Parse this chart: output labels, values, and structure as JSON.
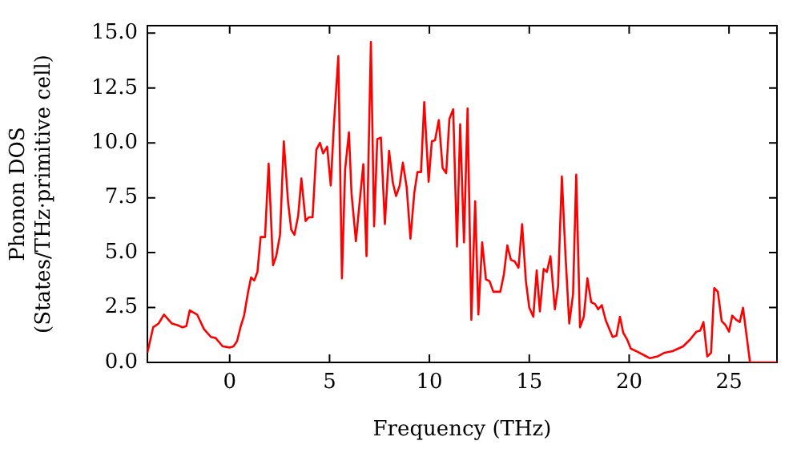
{
  "chart_data": {
    "type": "line",
    "xlabel": "Frequency (THz)",
    "ylabel": "Phonon DOS\n(States/THz·primitive cell)",
    "x": [
      -4.12,
      -3.83,
      -3.56,
      -3.29,
      -2.89,
      -2.62,
      -2.36,
      -2.17,
      -2.0,
      -1.63,
      -1.29,
      -0.94,
      -0.7,
      -0.35,
      0,
      0.19,
      0.37,
      0.54,
      0.72,
      0.91,
      1.07,
      1.23,
      1.39,
      1.55,
      1.77,
      1.95,
      2.17,
      2.33,
      2.52,
      2.71,
      2.92,
      3.08,
      3.24,
      3.43,
      3.59,
      3.8,
      3.96,
      4.15,
      4.34,
      4.52,
      4.68,
      4.88,
      5.06,
      5.22,
      5.44,
      5.62,
      5.78,
      5.97,
      6.1,
      6.32,
      6.51,
      6.69,
      6.85,
      7.07,
      7.23,
      7.39,
      7.57,
      7.77,
      7.98,
      8.17,
      8.33,
      8.51,
      8.67,
      8.86,
      9.05,
      9.24,
      9.4,
      9.58,
      9.74,
      9.96,
      10.12,
      10.28,
      10.47,
      10.66,
      10.84,
      11.0,
      11.19,
      11.38,
      11.54,
      11.73,
      11.91,
      12.1,
      12.29,
      12.45,
      12.64,
      12.83,
      13.01,
      13.2,
      13.55,
      13.73,
      13.9,
      14.08,
      14.27,
      14.46,
      14.64,
      14.83,
      15.0,
      15.2,
      15.37,
      15.53,
      15.72,
      15.88,
      16.06,
      16.28,
      16.44,
      16.63,
      16.81,
      17.0,
      17.19,
      17.35,
      17.54,
      17.73,
      17.91,
      18.1,
      18.29,
      18.45,
      18.63,
      18.82,
      19.17,
      19.36,
      19.54,
      19.7,
      19.9,
      20.08,
      20.43,
      20.78,
      21.04,
      21.42,
      21.77,
      22.17,
      22.7,
      23.05,
      23.37,
      23.56,
      23.72,
      23.91,
      24.1,
      24.26,
      24.44,
      24.63,
      24.82,
      25.0,
      25.16,
      25.36,
      25.54,
      25.7,
      26.05,
      27.39
    ],
    "series": [
      {
        "color": "#ff0000",
        "values": [
          0.44,
          1.6,
          1.77,
          2.18,
          1.77,
          1.7,
          1.6,
          1.65,
          2.37,
          2.18,
          1.52,
          1.16,
          1.11,
          0.73,
          0.68,
          0.73,
          0.97,
          1.6,
          2.13,
          3.15,
          3.87,
          3.73,
          4.12,
          5.71,
          5.71,
          9.06,
          4.43,
          4.84,
          5.81,
          10.07,
          7.34,
          6.05,
          5.81,
          6.68,
          8.38,
          6.44,
          6.61,
          6.61,
          9.69,
          10.0,
          9.52,
          9.83,
          8.06,
          10.85,
          13.95,
          3.83,
          8.79,
          10.48,
          7.7,
          5.52,
          7.34,
          9.03,
          4.84,
          14.6,
          6.2,
          10.17,
          10.24,
          6.3,
          9.64,
          8.18,
          7.58,
          8.06,
          9.1,
          7.99,
          5.64,
          7.7,
          8.67,
          8.67,
          11.86,
          8.23,
          10.07,
          10.12,
          11.04,
          8.86,
          8.62,
          11.09,
          11.53,
          5.28,
          10.85,
          5.47,
          11.57,
          1.94,
          7.34,
          2.18,
          5.47,
          3.78,
          3.7,
          3.22,
          3.22,
          4.02,
          5.33,
          4.67,
          4.6,
          4.31,
          6.3,
          3.7,
          2.49,
          2.08,
          4.19,
          2.32,
          4.26,
          4.12,
          4.84,
          2.42,
          3.46,
          8.47,
          4.92,
          1.77,
          3.1,
          8.55,
          1.6,
          2.08,
          3.83,
          2.74,
          2.66,
          2.42,
          2.61,
          1.94,
          1.16,
          1.21,
          2.08,
          1.36,
          1.04,
          0.63,
          0.48,
          0.31,
          0.19,
          0.27,
          0.44,
          0.51,
          0.73,
          1.04,
          1.4,
          1.45,
          1.84,
          0.27,
          0.44,
          3.39,
          3.22,
          1.89,
          1.7,
          1.4,
          2.13,
          1.94,
          1.84,
          2.49,
          0,
          0
        ]
      }
    ],
    "xlim": [
      -4.12,
      27.4
    ],
    "xticks": [
      0,
      5,
      10,
      15,
      20,
      25
    ],
    "ylim": [
      0,
      15.34
    ],
    "yticks": [
      {
        "value": 0,
        "label": "0.0"
      },
      2.5,
      {
        "value": 5,
        "label": "5.0"
      },
      7.5,
      {
        "value": 10,
        "label": "10.0"
      },
      12.5,
      {
        "value": 15,
        "label": "15.0"
      }
    ],
    "grid": false,
    "legend": false,
    "marker": "none",
    "line_style": "solid"
  }
}
